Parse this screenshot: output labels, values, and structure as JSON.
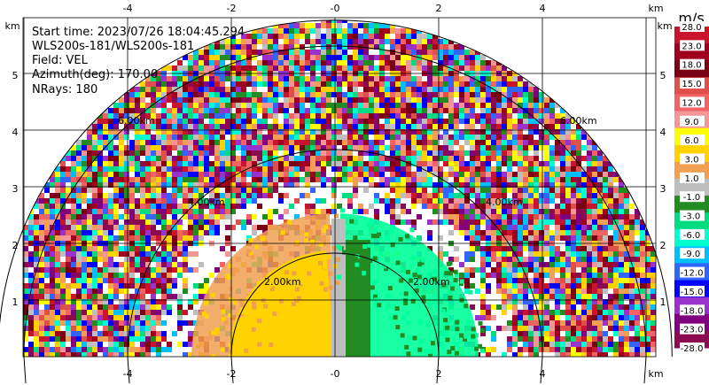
{
  "info": {
    "start_time": "Start time: 2023/07/26 18:04:45.294",
    "site": "WLS200s-181/WLS200s-181",
    "field": "Field: VEL",
    "azimuth": "Azimuth(deg): 170.00",
    "nrays": "NRays: 180"
  },
  "axes": {
    "x_ticks": [
      "-4",
      "-2",
      "-0",
      "2",
      "4"
    ],
    "x_unit": "km",
    "y_ticks": [
      "1",
      "2",
      "3",
      "4",
      "5"
    ],
    "y_unit": "km"
  },
  "range_rings": {
    "labels_right": [
      "2.00km",
      "4.00km",
      "6.00km"
    ],
    "labels_left": [
      "2.00km",
      "4.00km",
      "6.00km"
    ]
  },
  "colorbar": {
    "title": "m/s",
    "ticks": [
      "28.0",
      "23.0",
      "18.0",
      "15.0",
      "12.0",
      "9.0",
      "6.0",
      "3.0",
      "1.0",
      "-1.0",
      "-3.0",
      "-6.0",
      "-9.0",
      "-12.0",
      "-15.0",
      "-18.0",
      "-23.0",
      "-28.0"
    ],
    "colors": [
      "#c8142d",
      "#a0001e",
      "#7a0014",
      "#e0504a",
      "#f26464",
      "#f59696",
      "#ffff00",
      "#ffd200",
      "#f0a050",
      "#bebebe",
      "#228b22",
      "#00dc82",
      "#00ffd0",
      "#00bfff",
      "#3264ff",
      "#0000ff",
      "#9932cc",
      "#800080",
      "#8b0a50"
    ]
  },
  "colors": {
    "near_left_outer": "#f0a050",
    "near_left_inner": "#ffd200",
    "near_center": "#bebebe",
    "near_right_strip": "#228b22",
    "near_right": "#00ff9a",
    "grid": "#000000"
  }
}
